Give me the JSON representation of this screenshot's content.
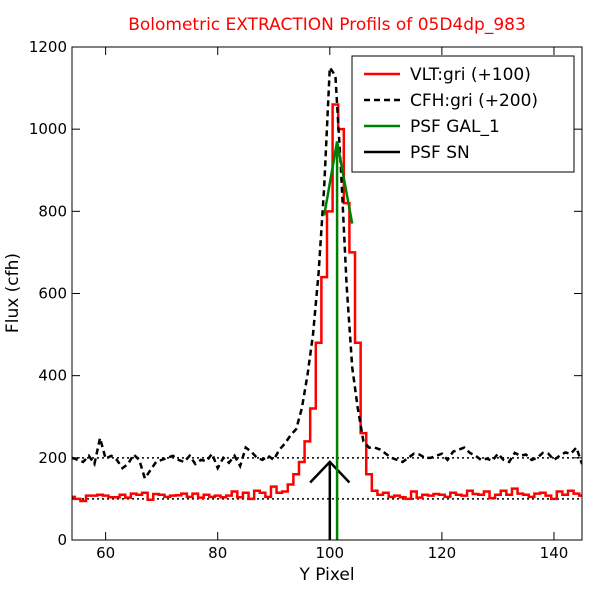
{
  "chart_data": {
    "type": "line",
    "title": "Bolometric EXTRACTION Profils of 05D4dp_983",
    "xlabel": "Y Pixel",
    "ylabel": "Flux (cfh)",
    "xlim": [
      54,
      145
    ],
    "ylim": [
      0,
      1200
    ],
    "x_ticks": [
      60,
      80,
      100,
      120,
      140
    ],
    "y_ticks": [
      0,
      200,
      400,
      600,
      800,
      1000,
      1200
    ],
    "grid": false,
    "legend_position": "top-right",
    "colors": {
      "title": "#ff0000",
      "vlt": "#ff0000",
      "cfh": "#000000",
      "psf_gal": "#008000",
      "psf_sn": "#000000"
    },
    "reference_lines": [
      {
        "y": 200,
        "style": "dotted"
      },
      {
        "y": 100,
        "style": "dotted"
      }
    ],
    "series": [
      {
        "name": "VLT:gri (+100)",
        "style": "steps-mid",
        "color": "#ff0000",
        "x": [
          54,
          55,
          56,
          57,
          58,
          59,
          60,
          61,
          62,
          63,
          64,
          65,
          66,
          67,
          68,
          69,
          70,
          71,
          72,
          73,
          74,
          75,
          76,
          77,
          78,
          79,
          80,
          81,
          82,
          83,
          84,
          85,
          86,
          87,
          88,
          89,
          90,
          91,
          92,
          93,
          94,
          95,
          96,
          97,
          98,
          99,
          100,
          101,
          102,
          103,
          104,
          105,
          106,
          107,
          108,
          109,
          110,
          111,
          112,
          113,
          114,
          115,
          116,
          117,
          118,
          119,
          120,
          121,
          122,
          123,
          124,
          125,
          126,
          127,
          128,
          129,
          130,
          131,
          132,
          133,
          134,
          135,
          136,
          137,
          138,
          139,
          140,
          141,
          142,
          143,
          144,
          145
        ],
        "y": [
          105,
          100,
          95,
          108,
          108,
          110,
          108,
          104,
          104,
          110,
          103,
          113,
          110,
          115,
          98,
          112,
          110,
          105,
          108,
          109,
          113,
          105,
          113,
          103,
          110,
          105,
          108,
          104,
          108,
          118,
          104,
          115,
          100,
          120,
          115,
          105,
          130,
          115,
          118,
          135,
          160,
          190,
          240,
          320,
          480,
          640,
          800,
          1060,
          1000,
          820,
          700,
          480,
          260,
          160,
          120,
          110,
          115,
          105,
          108,
          104,
          100,
          118,
          103,
          110,
          108,
          112,
          110,
          105,
          115,
          110,
          108,
          120,
          112,
          110,
          118,
          102,
          110,
          120,
          110,
          125,
          113,
          110,
          105,
          113,
          115,
          108,
          100,
          118,
          110,
          120,
          113,
          108
        ]
      },
      {
        "name": "CFH:gri (+200)",
        "style": "dashed",
        "color": "#000000",
        "x": [
          54,
          55,
          56,
          57,
          58,
          59,
          60,
          61,
          62,
          63,
          64,
          65,
          66,
          67,
          68,
          69,
          70,
          71,
          72,
          73,
          74,
          75,
          76,
          77,
          78,
          79,
          80,
          81,
          82,
          83,
          84,
          85,
          86,
          87,
          88,
          89,
          90,
          91,
          92,
          93,
          94,
          95,
          96,
          97,
          98,
          99,
          100,
          101,
          102,
          103,
          104,
          105,
          106,
          107,
          108,
          109,
          110,
          111,
          112,
          113,
          114,
          115,
          116,
          117,
          118,
          119,
          120,
          121,
          122,
          123,
          124,
          125,
          126,
          127,
          128,
          129,
          130,
          131,
          132,
          133,
          134,
          135,
          136,
          137,
          138,
          139,
          140,
          141,
          142,
          143,
          144,
          145
        ],
        "y": [
          200,
          195,
          190,
          205,
          185,
          248,
          198,
          205,
          195,
          175,
          185,
          208,
          195,
          150,
          170,
          190,
          195,
          200,
          205,
          195,
          190,
          205,
          185,
          195,
          192,
          210,
          175,
          200,
          188,
          205,
          180,
          225,
          215,
          200,
          195,
          205,
          195,
          220,
          235,
          255,
          270,
          320,
          400,
          500,
          650,
          860,
          1150,
          1130,
          900,
          620,
          420,
          320,
          240,
          225,
          225,
          220,
          210,
          200,
          195,
          190,
          200,
          210,
          208,
          200,
          200,
          205,
          210,
          195,
          215,
          220,
          225,
          212,
          205,
          195,
          198,
          193,
          210,
          195,
          190,
          212,
          205,
          208,
          195,
          200,
          212,
          210,
          195,
          205,
          213,
          210,
          225,
          185
        ]
      },
      {
        "name": "PSF GAL_1",
        "style": "solid",
        "color": "#008000",
        "x": [
          99,
          101.3,
          104
        ],
        "y": [
          790,
          970,
          770
        ]
      },
      {
        "name": "PSF SN",
        "style": "solid",
        "color": "#000000",
        "x": [
          96.5,
          100,
          103.5
        ],
        "y": [
          140,
          190,
          140
        ]
      }
    ],
    "vertical_markers": [
      {
        "series": "PSF GAL_1",
        "x": 101.3,
        "y_from": 0,
        "y_to": 970,
        "color": "#008000"
      },
      {
        "series": "PSF SN",
        "x": 100,
        "y_from": 0,
        "y_to": 190,
        "color": "#000000"
      }
    ]
  }
}
